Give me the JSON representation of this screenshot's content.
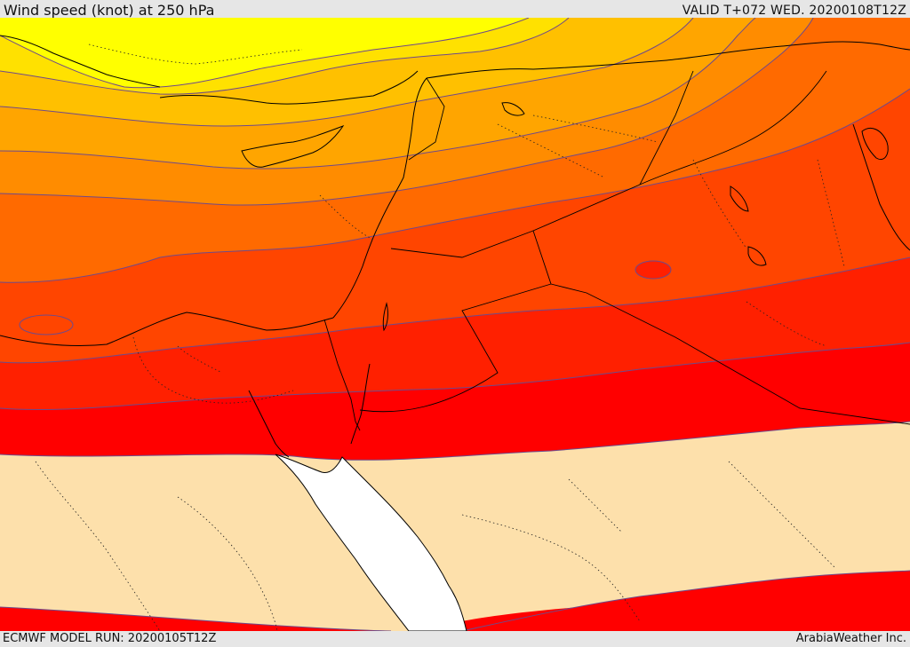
{
  "header": {
    "title": "Wind speed (knot) at 250 hPa",
    "valid": "VALID T+072 WED. 20200108T12Z"
  },
  "footer": {
    "model_run": "ECMWF MODEL RUN: 20200105T12Z",
    "credit": "ArabiaWeather Inc."
  },
  "colors": {
    "band_yellow": "#ffff00",
    "band_gold": "#ffe100",
    "band_amber": "#ffc000",
    "band_light_orange": "#ffa500",
    "band_orange": "#ff8c00",
    "band_dark_orange": "#ff6a00",
    "band_red_orange": "#ff4500",
    "band_red": "#ff2000",
    "band_deep_red": "#ff0000",
    "calm_area": "#fde0ab",
    "sea": "#ffffff",
    "coastline": "#000000",
    "contour": "#6f4a8a"
  }
}
